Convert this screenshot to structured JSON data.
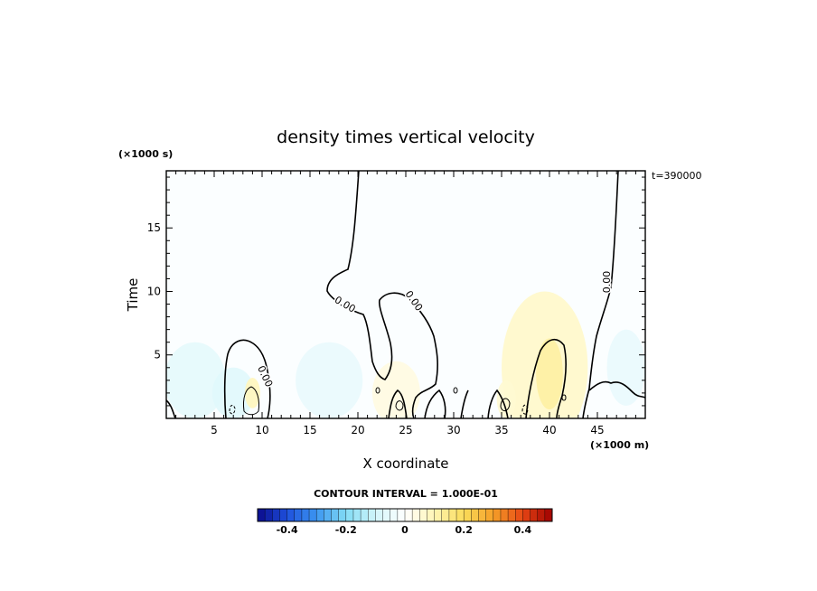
{
  "chart_data": {
    "type": "heatmap",
    "title": "density times vertical velocity",
    "xlabel": "X coordinate",
    "ylabel": "Time",
    "x_unit_label": "(×1000 m)",
    "y_unit_label": "(×1000 s)",
    "time_label": "t=390000",
    "xlim": [
      0,
      50
    ],
    "ylim": [
      0,
      19.5
    ],
    "xticks": [
      5,
      10,
      15,
      20,
      25,
      30,
      35,
      40,
      45
    ],
    "yticks": [
      5,
      10,
      15
    ],
    "contour_labels": [
      "0.00",
      "0.00",
      "0.00",
      "0.00"
    ],
    "contour_interval_label": "CONTOUR INTERVAL = 1.000E-01",
    "colorbar": {
      "min": -0.5,
      "max": 0.5,
      "ticks": [
        -0.4,
        -0.2,
        0,
        0.2,
        0.4
      ],
      "tick_labels": [
        "-0.4",
        "-0.2",
        "0",
        "0.2",
        "0.4"
      ],
      "stops": [
        "#0a0a8c",
        "#1e50dc",
        "#3c96f0",
        "#82dcf5",
        "#d2f5fa",
        "#ffffff",
        "#fff5b4",
        "#fadc5a",
        "#f5a028",
        "#e64614",
        "#a00000"
      ]
    },
    "features": [
      {
        "kind": "blob",
        "x": 3,
        "y": 3,
        "rx": 3.2,
        "ry": 3.0,
        "value": -0.06
      },
      {
        "kind": "blob",
        "x": 7,
        "y": 2,
        "rx": 2.2,
        "ry": 2.0,
        "value": -0.07
      },
      {
        "kind": "blob",
        "x": 17,
        "y": 3,
        "rx": 3.5,
        "ry": 3.0,
        "value": -0.05
      },
      {
        "kind": "blob",
        "x": 9,
        "y": 2,
        "rx": 0.8,
        "ry": 1.2,
        "value": 0.09
      },
      {
        "kind": "blob",
        "x": 39.5,
        "y": 4,
        "rx": 4.5,
        "ry": 6.0,
        "value": 0.07
      },
      {
        "kind": "blob",
        "x": 40,
        "y": 3.5,
        "rx": 1.4,
        "ry": 2.8,
        "value": 0.12
      },
      {
        "kind": "blob",
        "x": 48,
        "y": 4,
        "rx": 2.0,
        "ry": 3.0,
        "value": -0.05
      },
      {
        "kind": "blob",
        "x": 24,
        "y": 2,
        "rx": 2.5,
        "ry": 2.5,
        "value": 0.04
      },
      {
        "kind": "blob",
        "x": 35.5,
        "y": 1.5,
        "rx": 1.0,
        "ry": 1.5,
        "value": 0.06
      }
    ]
  }
}
